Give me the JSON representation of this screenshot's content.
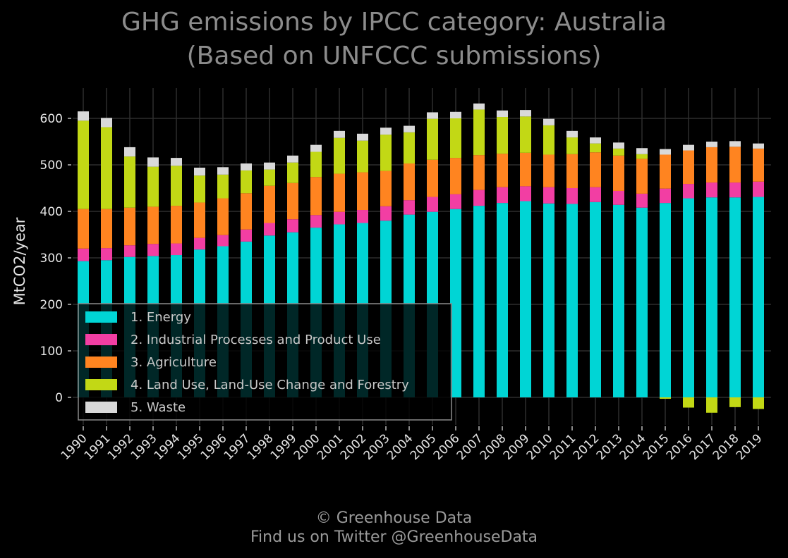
{
  "title_line1": "GHG emissions by IPCC category: Australia",
  "title_line2": "(Based on UNFCCC submissions)",
  "footer_line1": "© Greenhouse Data",
  "footer_line2": "Find us on Twitter @GreenhouseData",
  "chart_data": {
    "type": "bar",
    "stacked": true,
    "title": "GHG emissions by IPCC category: Australia (Based on UNFCCC submissions)",
    "xlabel": "",
    "ylabel": "MtCO2/year",
    "ylim": [
      -60,
      665
    ],
    "yticks": [
      0,
      100,
      200,
      300,
      400,
      500,
      600
    ],
    "grid": true,
    "legend_position": "lower-left",
    "categories": [
      "1990",
      "1991",
      "1992",
      "1993",
      "1994",
      "1995",
      "1996",
      "1997",
      "1998",
      "1999",
      "2000",
      "2001",
      "2002",
      "2003",
      "2004",
      "2005",
      "2006",
      "2007",
      "2008",
      "2009",
      "2010",
      "2011",
      "2012",
      "2013",
      "2014",
      "2015",
      "2016",
      "2017",
      "2018",
      "2019"
    ],
    "series": [
      {
        "name": "1. Energy",
        "color": "#00d5d5",
        "values": [
          293,
          295,
          302,
          304,
          306,
          318,
          325,
          335,
          348,
          355,
          365,
          372,
          375,
          380,
          393,
          399,
          405,
          412,
          418,
          422,
          417,
          416,
          420,
          414,
          408,
          418,
          428,
          430,
          430,
          431
        ]
      },
      {
        "name": "2. Industrial Processes and Product Use",
        "color": "#f23ea3",
        "values": [
          27,
          26,
          25,
          26,
          25,
          25,
          24,
          26,
          27,
          28,
          27,
          27,
          28,
          31,
          31,
          32,
          32,
          34,
          34,
          32,
          35,
          34,
          32,
          30,
          30,
          31,
          31,
          32,
          32,
          33
        ]
      },
      {
        "name": "3. Agriculture",
        "color": "#ff8420",
        "values": [
          85,
          84,
          81,
          80,
          81,
          76,
          79,
          78,
          80,
          78,
          82,
          82,
          81,
          76,
          79,
          80,
          78,
          75,
          72,
          72,
          70,
          73,
          75,
          76,
          75,
          73,
          72,
          76,
          77,
          71
        ]
      },
      {
        "name": "4. Land Use, Land-Use Change and Forestry",
        "color": "#c2d815",
        "values": [
          190,
          176,
          110,
          86,
          86,
          58,
          51,
          49,
          35,
          44,
          54,
          77,
          68,
          78,
          67,
          88,
          85,
          98,
          79,
          78,
          63,
          36,
          19,
          15,
          10,
          -3,
          -22,
          -33,
          -21,
          -25
        ]
      },
      {
        "name": "5. Waste",
        "color": "#d9d9d9",
        "values": [
          20,
          20,
          20,
          20,
          17,
          17,
          16,
          15,
          15,
          15,
          15,
          15,
          15,
          15,
          14,
          14,
          14,
          13,
          14,
          14,
          14,
          14,
          13,
          13,
          13,
          12,
          12,
          12,
          12,
          11
        ]
      }
    ]
  }
}
